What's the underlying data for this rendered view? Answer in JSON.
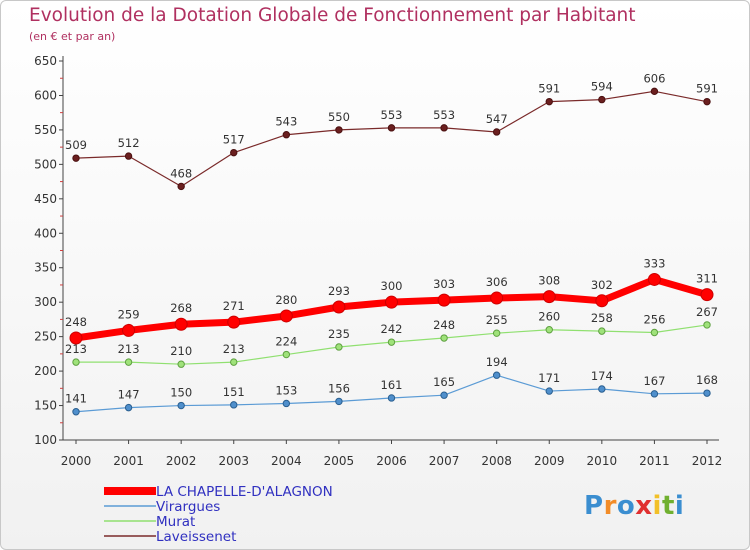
{
  "chart_data": {
    "type": "line",
    "title": "Evolution de la Dotation Globale de Fonctionnement par Habitant",
    "subtitle": "(en € et par an)",
    "xlabel": "",
    "ylabel": "",
    "categories": [
      "2000",
      "2001",
      "2002",
      "2003",
      "2004",
      "2005",
      "2006",
      "2007",
      "2008",
      "2009",
      "2010",
      "2011",
      "2012"
    ],
    "ylim": [
      100,
      650
    ],
    "yticks": [
      "100",
      "150",
      "200",
      "250",
      "300",
      "350",
      "400",
      "450",
      "500",
      "550",
      "600",
      "650"
    ],
    "grid": false,
    "legend_position": "bottom-left",
    "series": [
      {
        "name": "LA CHAPELLE-D'ALAGNON",
        "color": "#ff0000",
        "values": [
          248,
          259,
          268,
          271,
          280,
          293,
          300,
          303,
          306,
          308,
          302,
          333,
          311
        ]
      },
      {
        "name": "Virargues",
        "color": "#5b9bd5",
        "values": [
          141,
          147,
          150,
          151,
          153,
          156,
          161,
          165,
          194,
          171,
          174,
          167,
          168
        ]
      },
      {
        "name": "Murat",
        "color": "#90e070",
        "values": [
          213,
          213,
          210,
          213,
          224,
          235,
          242,
          248,
          255,
          260,
          258,
          256,
          267
        ]
      },
      {
        "name": "Laveissenet",
        "color": "#7a2a2a",
        "values": [
          509,
          512,
          468,
          517,
          543,
          550,
          553,
          553,
          547,
          591,
          594,
          606,
          591
        ]
      }
    ]
  },
  "logo": {
    "letters": [
      "P",
      "r",
      "o",
      "x",
      "i",
      "t",
      "i"
    ],
    "colors": [
      "#3b8ed0",
      "#f28c28",
      "#3b8ed0",
      "#e03030",
      "#f2c028",
      "#70b030",
      "#3b8ed0"
    ]
  }
}
